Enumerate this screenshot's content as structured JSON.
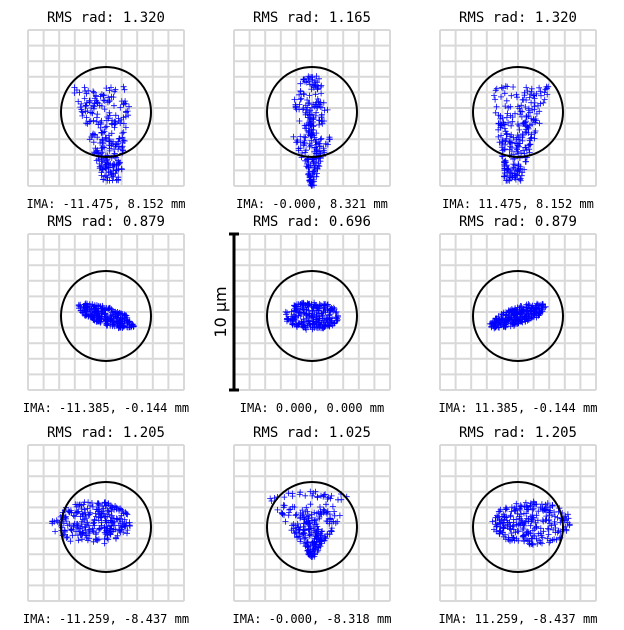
{
  "chart_data": {
    "type": "spot-diagram",
    "units": "mm",
    "scale_bar_label": "10 µm",
    "spot_color": "#0000ff",
    "airy_circle_color": "#000000",
    "grid_color": "#d9d9d9",
    "cells": [
      {
        "rms_label": "RMS rad:",
        "rms_value": "1.320",
        "field_label": "IMA: -11.475, 8.152 mm",
        "shape": "tri-left"
      },
      {
        "rms_label": "RMS rad:",
        "rms_value": "1.165",
        "field_label": "IMA: -0.000, 8.321 mm",
        "shape": "drop"
      },
      {
        "rms_label": "RMS rad:",
        "rms_value": "1.320",
        "field_label": "IMA: 11.475, 8.152 mm",
        "shape": "tri-right"
      },
      {
        "rms_label": "RMS rad:",
        "rms_value": "0.879",
        "field_label": "IMA: -11.385, -0.144 mm",
        "shape": "ell-down"
      },
      {
        "rms_label": "RMS rad:",
        "rms_value": "0.696",
        "field_label": "IMA: 0.000, 0.000 mm",
        "shape": "ell-h"
      },
      {
        "rms_label": "RMS rad:",
        "rms_value": "0.879",
        "field_label": "IMA: 11.385, -0.144 mm",
        "shape": "ell-up"
      },
      {
        "rms_label": "RMS rad:",
        "rms_value": "1.205",
        "field_label": "IMA: -11.259, -8.437 mm",
        "shape": "comet-left"
      },
      {
        "rms_label": "RMS rad:",
        "rms_value": "1.025",
        "field_label": "IMA: -0.000, -8.318 mm",
        "shape": "cone"
      },
      {
        "rms_label": "RMS rad:",
        "rms_value": "1.205",
        "field_label": "IMA: 11.259, -8.437 mm",
        "shape": "comet-right"
      }
    ]
  }
}
